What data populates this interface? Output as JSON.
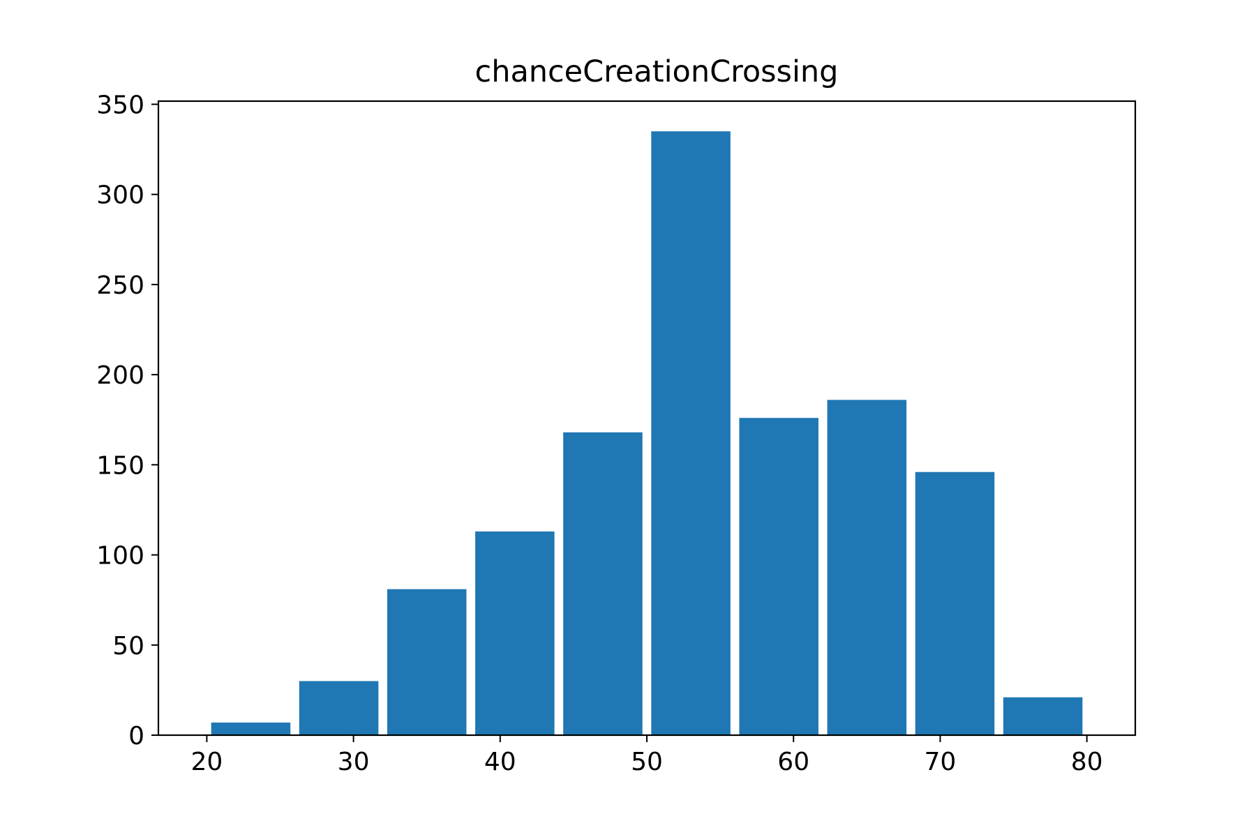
{
  "chart_data": {
    "type": "bar",
    "title": "chanceCreationCrossing",
    "xlabel": "",
    "ylabel": "",
    "bins": [
      {
        "start": 20,
        "end": 26,
        "value": 7
      },
      {
        "start": 26,
        "end": 32,
        "value": 30
      },
      {
        "start": 32,
        "end": 38,
        "value": 81
      },
      {
        "start": 38,
        "end": 44,
        "value": 113
      },
      {
        "start": 44,
        "end": 50,
        "value": 168
      },
      {
        "start": 50,
        "end": 56,
        "value": 335
      },
      {
        "start": 56,
        "end": 62,
        "value": 176
      },
      {
        "start": 62,
        "end": 68,
        "value": 186
      },
      {
        "start": 68,
        "end": 74,
        "value": 146
      },
      {
        "start": 74,
        "end": 80,
        "value": 21
      }
    ],
    "xlim": [
      16.7,
      83.3
    ],
    "ylim": [
      0,
      351.75
    ],
    "xticks": [
      20,
      30,
      40,
      50,
      60,
      70,
      80
    ],
    "yticks": [
      0,
      50,
      100,
      150,
      200,
      250,
      300,
      350
    ],
    "bar_color": "#1f77b4",
    "grid": false,
    "legend": "none"
  }
}
